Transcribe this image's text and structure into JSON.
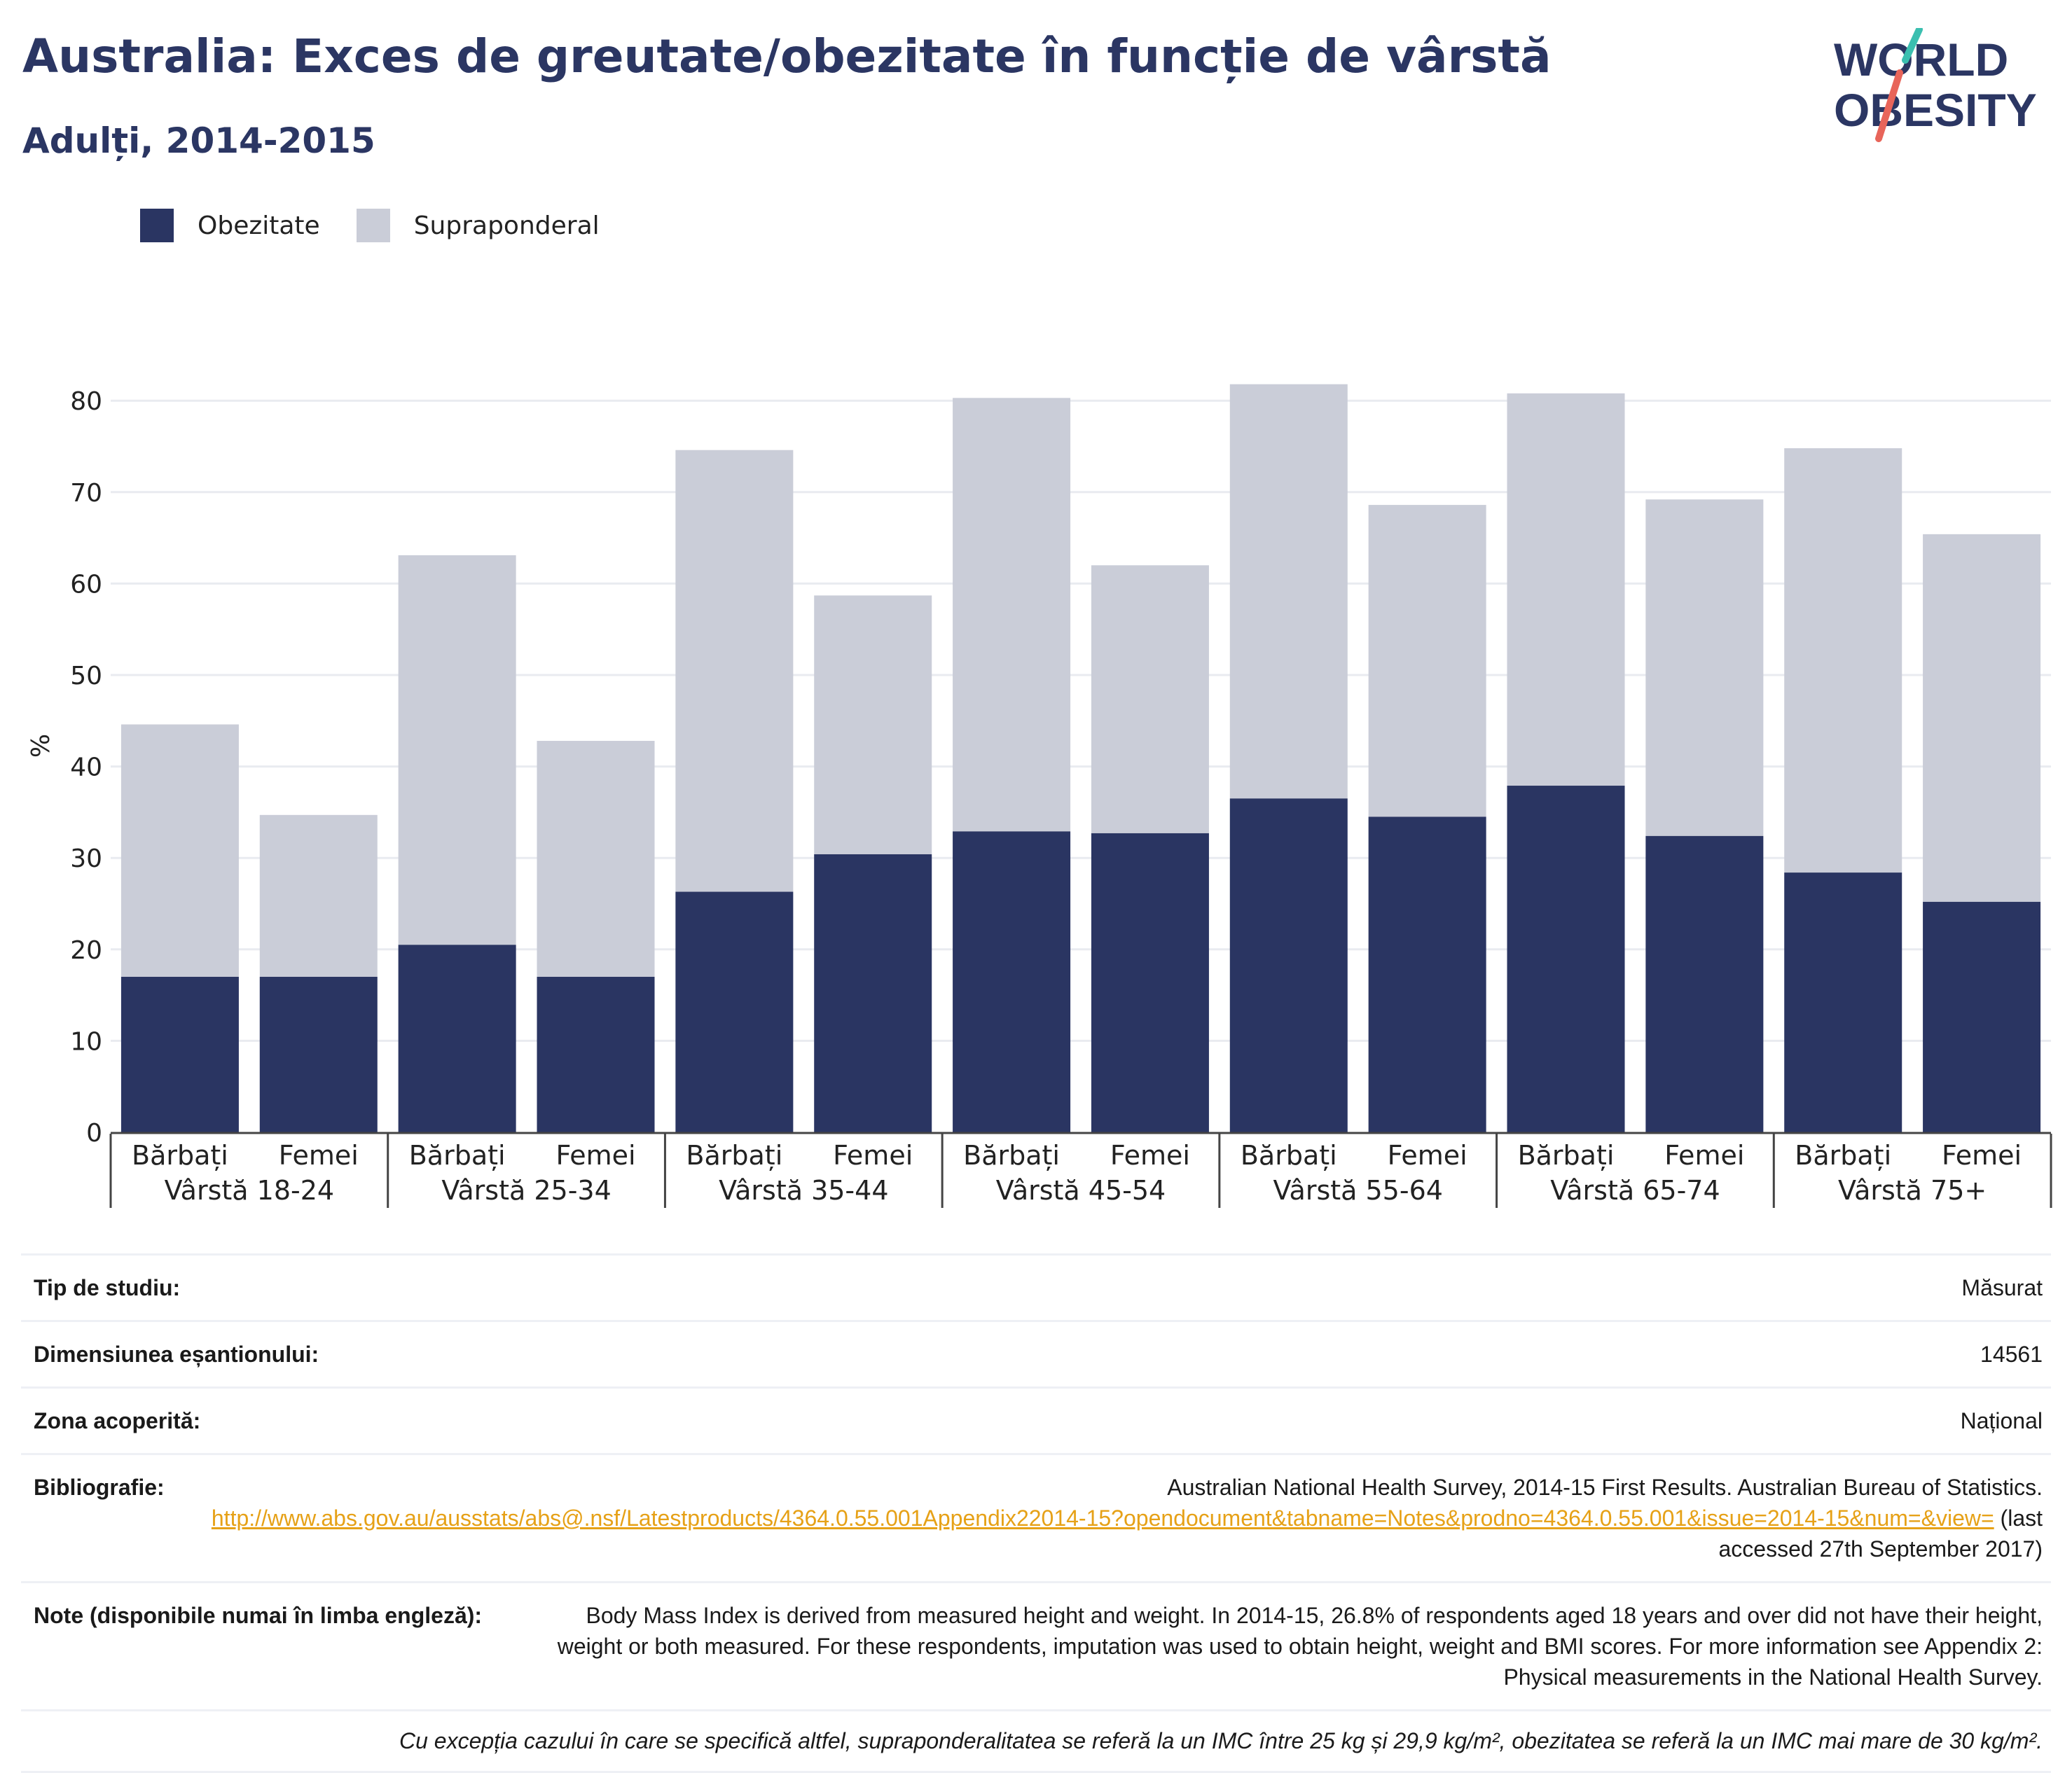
{
  "title": "Australia: Exces de greutate/obezitate în funcție de vârstă",
  "subtitle": "Adulți, 2014-2015",
  "logo": {
    "line1": "WORLD",
    "line2": "OBESITY"
  },
  "colors": {
    "obesity": "#2a3562",
    "overweight": "#cacdd8",
    "title": "#2b3663",
    "link": "#e6a117",
    "logo_teal": "#3bbfb0",
    "logo_red": "#e8655a"
  },
  "legend": [
    {
      "label": "Obezitate",
      "color": "#2a3562"
    },
    {
      "label": "Supraponderal",
      "color": "#cacdd8"
    }
  ],
  "chart_data": {
    "type": "bar",
    "stacked": true,
    "ylabel": "%",
    "xlabel": "",
    "ylim": [
      0,
      85
    ],
    "yticks": [
      0,
      10,
      20,
      30,
      40,
      50,
      60,
      70,
      80
    ],
    "grid": true,
    "legend_position": "top-left",
    "groups": [
      "Vârstă 18-24",
      "Vârstă 25-34",
      "Vârstă 35-44",
      "Vârstă 45-54",
      "Vârstă 55-64",
      "Vârstă 65-74",
      "Vârstă 75+"
    ],
    "categories": [
      "Bărbați",
      "Femei",
      "Bărbați",
      "Femei",
      "Bărbați",
      "Femei",
      "Bărbați",
      "Femei",
      "Bărbați",
      "Femei",
      "Bărbați",
      "Femei",
      "Bărbați",
      "Femei"
    ],
    "series": [
      {
        "name": "Obezitate",
        "values": [
          17.0,
          17.0,
          20.5,
          17.0,
          26.3,
          30.4,
          32.9,
          32.7,
          36.5,
          34.5,
          37.9,
          32.4,
          28.4,
          25.2
        ]
      },
      {
        "name": "Supraponderal",
        "values": [
          27.6,
          17.7,
          42.6,
          25.8,
          48.3,
          28.3,
          47.4,
          29.3,
          45.3,
          34.1,
          42.9,
          36.8,
          46.4,
          40.2
        ]
      }
    ]
  },
  "info": [
    {
      "label": "Tip de studiu:",
      "value": "Măsurat"
    },
    {
      "label": "Dimensiunea eșantionului:",
      "value": "14561"
    },
    {
      "label": "Zona acoperită:",
      "value": "Național"
    }
  ],
  "bibliography": {
    "label": "Bibliografie:",
    "text": "Australian National Health Survey, 2014-15 First Results. Australian Bureau of Statistics.",
    "link": "http://www.abs.gov.au/ausstats/abs@.nsf/Latestproducts/4364.0.55.001Appendix22014-15?opendocument&tabname=Notes&prodno=4364.0.55.001&issue=2014-15&num=&view=",
    "accessed": "(last accessed 27th September 2017)"
  },
  "notes": {
    "label": "Note (disponibile numai în limba engleză):",
    "text": "Body Mass Index is derived from measured height and weight. In 2014-15, 26.8% of respondents aged 18 years and over did not have their height, weight or both measured. For these respondents, imputation was used to obtain height, weight and BMI scores. For more information see Appendix 2: Physical measurements in the National Health Survey."
  },
  "footnote": "Cu excepția cazului în care se specifică altfel, supraponderalitatea se referă la un IMC între 25 kg și 29,9 kg/m², obezitatea se referă la un IMC mai mare de 30 kg/m²."
}
